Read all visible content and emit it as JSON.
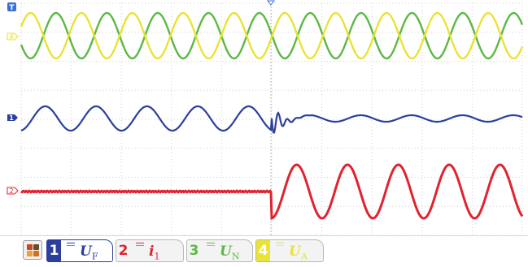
{
  "colors": {
    "grid": "#cfcfcf",
    "ch1": "#2b3f9c",
    "ch2": "#e0232f",
    "ch3": "#5cb846",
    "ch4": "#e8e336",
    "trigger": "#3a6fd8"
  },
  "markers": {
    "trigger_label": "T",
    "ch1_label": "1",
    "ch2_label": "2",
    "ch4_label": "4"
  },
  "channels": [
    {
      "number": "1",
      "symbol": "U",
      "subscript": "F",
      "color": "#2b3f9c",
      "active": true
    },
    {
      "number": "2",
      "symbol": "i",
      "subscript": "1",
      "color": "#e0232f",
      "active": false
    },
    {
      "number": "3",
      "symbol": "U",
      "subscript": "N",
      "color": "#5cb846",
      "active": false
    },
    {
      "number": "4",
      "symbol": "U",
      "subscript": "A",
      "color": "#e8e336",
      "active": false
    }
  ],
  "menu_icon": "grid-menu-icon"
}
